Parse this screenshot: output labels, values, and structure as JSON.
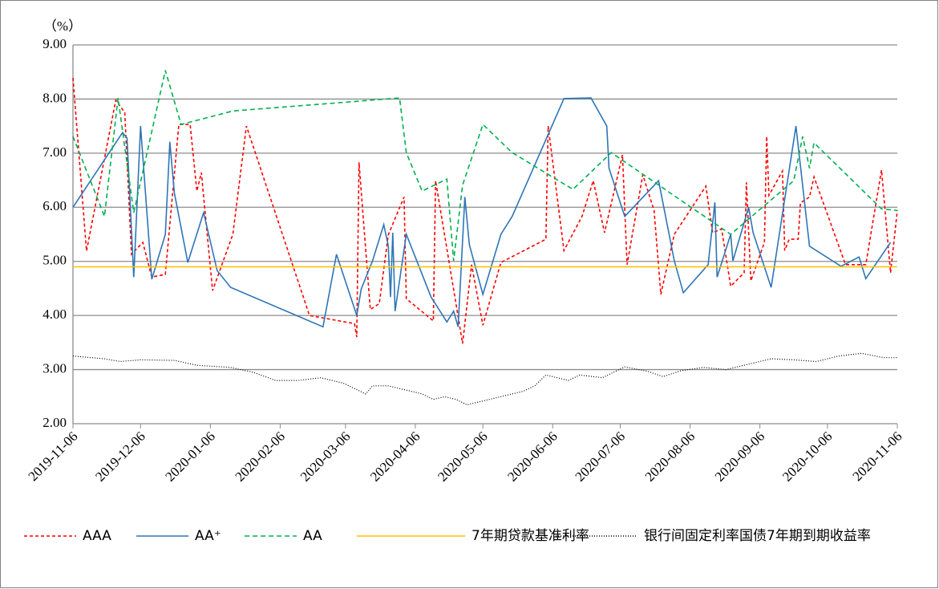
{
  "chart_data": {
    "type": "line",
    "y_unit": "（%）",
    "xlim": [
      "2019-11-06",
      "2020-11-06"
    ],
    "xticks": [
      "2019-11-06",
      "2019-12-06",
      "2020-01-06",
      "2020-02-06",
      "2020-03-06",
      "2020-04-06",
      "2020-05-06",
      "2020-06-06",
      "2020-07-06",
      "2020-08-06",
      "2020-09-06",
      "2020-10-06",
      "2020-11-06"
    ],
    "ylim": [
      2,
      9
    ],
    "yticks": [
      {
        "value": 2,
        "label": "2.00"
      },
      {
        "value": 3,
        "label": "3.00"
      },
      {
        "value": 4,
        "label": "4.00"
      },
      {
        "value": 5,
        "label": "5.00"
      },
      {
        "value": 6,
        "label": "6.00"
      },
      {
        "value": 7,
        "label": "7.00"
      },
      {
        "value": 8,
        "label": "8.00"
      },
      {
        "value": 9,
        "label": "9.00"
      }
    ],
    "grid": true,
    "legend": "bottom",
    "series": [
      {
        "name": "AAA",
        "color": "#ff0000",
        "dash": "4,3",
        "x": [
          "2019-11-06",
          "2019-11-12",
          "2019-11-25",
          "2019-11-29",
          "2019-12-02",
          "2019-12-07",
          "2019-12-11",
          "2019-12-17",
          "2019-12-23",
          "2019-12-28",
          "2019-12-31",
          "2020-01-02",
          "2020-01-07",
          "2020-01-16",
          "2020-01-22",
          "2020-02-19",
          "2020-03-10",
          "2020-03-11",
          "2020-03-12",
          "2020-03-17",
          "2020-03-21",
          "2020-03-25",
          "2020-04-01",
          "2020-04-02",
          "2020-04-14",
          "2020-04-15",
          "2020-04-27",
          "2020-05-01",
          "2020-05-06",
          "2020-05-14",
          "2020-06-03",
          "2020-06-04",
          "2020-06-11",
          "2020-06-19",
          "2020-06-24",
          "2020-06-29",
          "2020-07-07",
          "2020-07-09",
          "2020-07-16",
          "2020-07-21",
          "2020-07-24",
          "2020-07-30",
          "2020-08-13",
          "2020-08-16",
          "2020-08-20",
          "2020-08-24",
          "2020-08-30",
          "2020-08-31",
          "2020-09-02",
          "2020-09-08",
          "2020-09-09",
          "2020-09-10",
          "2020-09-16",
          "2020-09-17",
          "2020-09-19",
          "2020-09-23",
          "2020-09-24",
          "2020-09-28",
          "2020-09-30",
          "2020-10-14",
          "2020-10-23",
          "2020-10-30",
          "2020-11-03",
          "2020-11-06"
        ],
        "values": [
          8.39,
          5.19,
          7.98,
          7.75,
          5.13,
          5.35,
          4.71,
          4.76,
          7.53,
          7.53,
          6.3,
          6.64,
          4.46,
          5.5,
          7.5,
          4.0,
          3.85,
          3.6,
          6.83,
          4.11,
          4.22,
          5.49,
          6.19,
          4.31,
          3.9,
          6.49,
          3.48,
          4.94,
          3.82,
          4.98,
          5.41,
          7.5,
          5.2,
          5.83,
          6.49,
          5.53,
          6.97,
          4.94,
          6.6,
          5.94,
          4.39,
          5.5,
          6.39,
          5.53,
          5.6,
          4.54,
          4.79,
          6.46,
          4.64,
          5.35,
          7.31,
          6.22,
          6.67,
          5.2,
          5.41,
          5.41,
          6.08,
          6.19,
          6.56,
          4.94,
          4.94,
          6.69,
          4.79,
          5.94
        ]
      },
      {
        "name": "AA⁺",
        "color": "#2e75b6",
        "dash": "",
        "x": [
          "2019-11-06",
          "2019-11-28",
          "2019-11-30",
          "2019-12-03",
          "2019-12-06",
          "2019-12-11",
          "2019-12-17",
          "2019-12-19",
          "2019-12-21",
          "2019-12-27",
          "2020-01-03",
          "2020-01-09",
          "2020-01-15",
          "2020-02-25",
          "2020-03-02",
          "2020-03-11",
          "2020-03-13",
          "2020-03-18",
          "2020-03-23",
          "2020-03-25",
          "2020-03-26",
          "2020-03-27",
          "2020-03-28",
          "2020-04-02",
          "2020-04-13",
          "2020-04-20",
          "2020-04-23",
          "2020-04-25",
          "2020-04-28",
          "2020-04-30",
          "2020-05-06",
          "2020-05-14",
          "2020-05-19",
          "2020-06-11",
          "2020-06-23",
          "2020-06-30",
          "2020-07-01",
          "2020-07-08",
          "2020-07-23",
          "2020-07-30",
          "2020-08-03",
          "2020-08-14",
          "2020-08-17",
          "2020-08-18",
          "2020-08-24",
          "2020-08-25",
          "2020-09-01",
          "2020-09-03",
          "2020-09-11",
          "2020-09-22",
          "2020-09-28",
          "2020-10-12",
          "2020-10-20",
          "2020-10-23",
          "2020-11-03"
        ],
        "values": [
          6.0,
          7.38,
          7.28,
          4.71,
          7.5,
          4.67,
          5.5,
          7.21,
          6.27,
          4.98,
          5.9,
          4.83,
          4.52,
          3.79,
          5.13,
          4.0,
          4.49,
          5.01,
          5.68,
          5.29,
          4.34,
          5.53,
          4.08,
          5.5,
          4.34,
          3.88,
          4.08,
          3.79,
          6.19,
          5.31,
          4.39,
          5.5,
          5.83,
          8.01,
          8.02,
          7.5,
          6.72,
          5.83,
          6.49,
          5.01,
          4.42,
          4.94,
          6.09,
          4.71,
          5.5,
          5.01,
          6.0,
          5.53,
          4.52,
          7.5,
          5.28,
          4.91,
          5.08,
          4.68,
          5.35
        ]
      },
      {
        "name": "AA",
        "color": "#00b050",
        "dash": "6,4",
        "x": [
          "2019-11-06",
          "2019-11-20",
          "2019-11-26",
          "2019-12-03",
          "2019-12-17",
          "2019-12-24",
          "2020-01-16",
          "2020-03-30",
          "2020-04-02",
          "2020-04-09",
          "2020-04-20",
          "2020-04-23",
          "2020-04-27",
          "2020-05-06",
          "2020-05-19",
          "2020-06-15",
          "2020-07-02",
          "2020-08-24",
          "2020-09-21",
          "2020-09-25",
          "2020-09-28",
          "2020-09-30",
          "2020-10-30",
          "2020-11-06"
        ],
        "values": [
          7.31,
          5.83,
          8.02,
          5.9,
          8.53,
          7.53,
          7.78,
          8.02,
          7.01,
          6.3,
          6.52,
          5.01,
          6.41,
          7.53,
          7.01,
          6.33,
          7.01,
          5.5,
          6.49,
          7.31,
          6.72,
          7.19,
          5.97,
          5.94
        ]
      },
      {
        "name": "7年期贷款基准利率",
        "color": "#ffc000",
        "dash": "",
        "x": [
          "2019-11-06",
          "2020-11-06"
        ],
        "values": [
          4.9,
          4.9
        ]
      },
      {
        "name": "银行间固定利率国债7年期到期收益率",
        "color": "#000000",
        "dash": "1,2",
        "x": [
          "2019-11-06",
          "2019-11-20",
          "2019-11-27",
          "2019-12-06",
          "2019-12-21",
          "2019-12-31",
          "2020-01-15",
          "2020-01-25",
          "2020-02-04",
          "2020-02-14",
          "2020-02-24",
          "2020-03-05",
          "2020-03-15",
          "2020-03-18",
          "2020-03-25",
          "2020-04-04",
          "2020-04-09",
          "2020-04-14",
          "2020-04-19",
          "2020-04-24",
          "2020-04-29",
          "2020-05-04",
          "2020-05-14",
          "2020-05-24",
          "2020-05-29",
          "2020-06-03",
          "2020-06-08",
          "2020-06-13",
          "2020-06-18",
          "2020-06-28",
          "2020-07-08",
          "2020-07-18",
          "2020-07-25",
          "2020-08-02",
          "2020-08-12",
          "2020-08-22",
          "2020-09-01",
          "2020-09-11",
          "2020-09-21",
          "2020-10-01",
          "2020-10-11",
          "2020-10-21",
          "2020-10-31",
          "2020-11-06"
        ],
        "values": [
          3.25,
          3.2,
          3.15,
          3.18,
          3.17,
          3.08,
          3.04,
          2.95,
          2.8,
          2.8,
          2.85,
          2.75,
          2.55,
          2.7,
          2.7,
          2.6,
          2.55,
          2.45,
          2.5,
          2.45,
          2.35,
          2.4,
          2.5,
          2.6,
          2.7,
          2.9,
          2.85,
          2.8,
          2.9,
          2.85,
          3.05,
          2.97,
          2.87,
          2.98,
          3.04,
          3.0,
          3.1,
          3.2,
          3.18,
          3.15,
          3.25,
          3.3,
          3.22,
          3.22
        ]
      }
    ]
  }
}
